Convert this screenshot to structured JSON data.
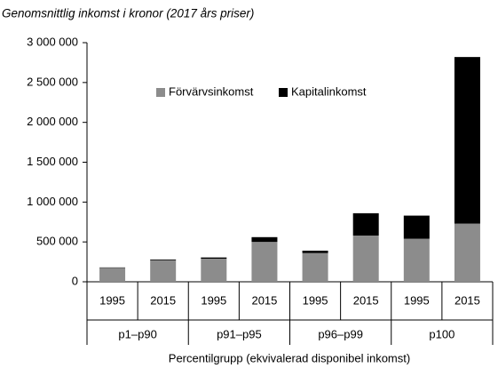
{
  "chart_data": {
    "type": "stacked_bar",
    "title": "Genomsnittlig inkomst i kronor (2017 års priser)",
    "x_label": "Percentilgrupp  (ekvivalerad disponibel inkomst)",
    "categories": [
      "1995",
      "2015",
      "1995",
      "2015",
      "1995",
      "2015",
      "1995",
      "2015"
    ],
    "groups": [
      "p1–p90",
      "p91–p95",
      "p96–p99",
      "p100"
    ],
    "series": [
      {
        "name": "Förvärvsinkomst",
        "color": "#8c8c8c",
        "values": [
          175000,
          270000,
          290000,
          500000,
          360000,
          580000,
          540000,
          730000
        ]
      },
      {
        "name": "Kapitalinkomst",
        "color": "#000000",
        "values": [
          5000,
          10000,
          15000,
          60000,
          30000,
          280000,
          290000,
          2090000
        ]
      }
    ],
    "ylim": [
      0,
      3000000
    ],
    "yticks": [
      0,
      {
        "value": 500000,
        "label": "500 000"
      },
      {
        "value": 1000000,
        "label": "1 000 000"
      },
      {
        "value": 1500000,
        "label": "1 500 000"
      },
      {
        "value": 2000000,
        "label": "2 000 000"
      },
      {
        "value": 2500000,
        "label": "2 500 000"
      },
      {
        "value": 3000000,
        "label": "3 000 000"
      }
    ],
    "grid": false,
    "legend": "top"
  }
}
